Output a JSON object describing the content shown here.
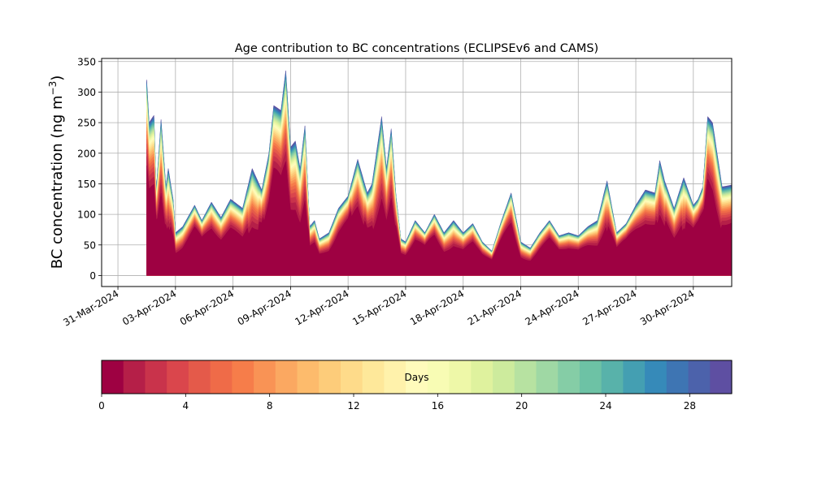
{
  "chart_data": {
    "type": "area",
    "title": "Age contribution to BC concentrations (ECLIPSEv6 and CAMS)",
    "ylabel_main": "BC concentration (ng m",
    "ylabel_exp": "−3",
    "ylabel_close": ")",
    "ylim": [
      -18,
      355
    ],
    "yticks": [
      0,
      50,
      100,
      150,
      200,
      250,
      300,
      350
    ],
    "xlim_days": [
      -0.85,
      32.0
    ],
    "xtick_labels": [
      "31-Mar-2024",
      "03-Apr-2024",
      "06-Apr-2024",
      "09-Apr-2024",
      "12-Apr-2024",
      "15-Apr-2024",
      "18-Apr-2024",
      "21-Apr-2024",
      "24-Apr-2024",
      "27-Apr-2024",
      "30-Apr-2024"
    ],
    "grid": true,
    "stacked_by": "age in days",
    "series_total": {
      "x": [
        "2024-04-01T12:00",
        "2024-04-01T15:00",
        "2024-04-01T21:00",
        "2024-04-02T00:00",
        "2024-04-02T06:00",
        "2024-04-02T12:00",
        "2024-04-02T15:00",
        "2024-04-02T21:00",
        "2024-04-03T00:00",
        "2024-04-03T09:00",
        "2024-04-04T00:00",
        "2024-04-04T09:00",
        "2024-04-04T21:00",
        "2024-04-05T09:00",
        "2024-04-05T21:00",
        "2024-04-06T12:00",
        "2024-04-07T00:00",
        "2024-04-07T12:00",
        "2024-04-07T21:00",
        "2024-04-08T03:00",
        "2024-04-08T12:00",
        "2024-04-08T18:00",
        "2024-04-09T00:00",
        "2024-04-09T06:00",
        "2024-04-09T12:00",
        "2024-04-09T18:00",
        "2024-04-10T00:00",
        "2024-04-10T06:00",
        "2024-04-10T12:00",
        "2024-04-11T00:00",
        "2024-04-11T12:00",
        "2024-04-12T00:00",
        "2024-04-12T12:00",
        "2024-04-13T00:00",
        "2024-04-13T06:00",
        "2024-04-13T18:00",
        "2024-04-14T00:00",
        "2024-04-14T06:00",
        "2024-04-14T12:00",
        "2024-04-14T18:00",
        "2024-04-15T00:00",
        "2024-04-15T12:00",
        "2024-04-16T00:00",
        "2024-04-16T12:00",
        "2024-04-17T00:00",
        "2024-04-17T12:00",
        "2024-04-18T00:00",
        "2024-04-18T12:00",
        "2024-04-19T00:00",
        "2024-04-19T12:00",
        "2024-04-20T00:00",
        "2024-04-20T12:00",
        "2024-04-21T00:00",
        "2024-04-21T12:00",
        "2024-04-22T00:00",
        "2024-04-22T12:00",
        "2024-04-23T00:00",
        "2024-04-23T12:00",
        "2024-04-24T00:00",
        "2024-04-24T12:00",
        "2024-04-25T00:00",
        "2024-04-25T12:00",
        "2024-04-26T00:00",
        "2024-04-26T12:00",
        "2024-04-27T00:00",
        "2024-04-27T12:00",
        "2024-04-28T00:00",
        "2024-04-28T06:00",
        "2024-04-28T12:00",
        "2024-04-29T00:00",
        "2024-04-29T12:00",
        "2024-04-30T00:00",
        "2024-04-30T06:00",
        "2024-04-30T12:00",
        "2024-04-30T18:00",
        "2024-05-01T00:00",
        "2024-05-01T12:00",
        "2024-05-02T00:00"
      ],
      "values": [
        320,
        250,
        262,
        140,
        255,
        145,
        175,
        125,
        70,
        80,
        115,
        90,
        120,
        95,
        125,
        110,
        175,
        140,
        200,
        278,
        270,
        335,
        210,
        220,
        175,
        245,
        80,
        90,
        60,
        70,
        110,
        130,
        190,
        135,
        150,
        260,
        175,
        240,
        130,
        60,
        55,
        90,
        70,
        100,
        70,
        90,
        70,
        85,
        55,
        40,
        90,
        135,
        55,
        45,
        70,
        90,
        65,
        70,
        65,
        80,
        90,
        155,
        70,
        85,
        115,
        140,
        135,
        188,
        155,
        110,
        160,
        115,
        125,
        145,
        260,
        250,
        145,
        148
      ]
    },
    "colorbar": {
      "label": "Days",
      "range": [
        0,
        30
      ],
      "ticks": [
        0,
        4,
        8,
        12,
        16,
        20,
        24,
        28
      ],
      "colors": [
        "#9e0142",
        "#b51f48",
        "#c9334b",
        "#da464c",
        "#e45a4a",
        "#ef6b48",
        "#f67d4a",
        "#f99355",
        "#fba861",
        "#fdbb6c",
        "#fdcc7a",
        "#fedb8a",
        "#fee89a",
        "#fff2ab",
        "#fffbbb",
        "#f8fcb4",
        "#eef8a8",
        "#dff29e",
        "#cdeb9d",
        "#b7e2a1",
        "#9fd8a4",
        "#85cda6",
        "#6dc2a5",
        "#58b2aa",
        "#449fb2",
        "#368ab9",
        "#3e75b3",
        "#4c62ab",
        "#5e4fa2"
      ]
    }
  }
}
